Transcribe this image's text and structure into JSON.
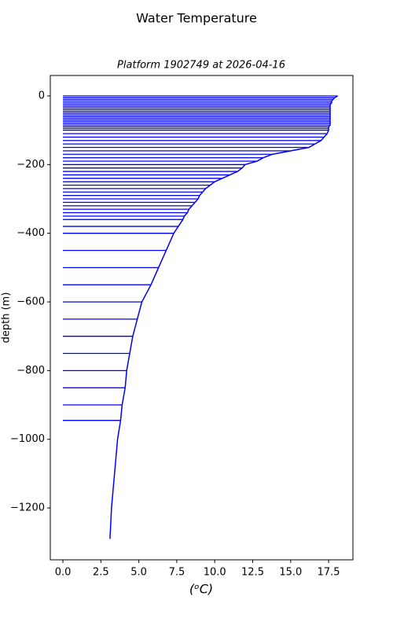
{
  "chart_data": {
    "type": "line",
    "suptitle": "Water Temperature",
    "title": "Platform 1902749 at 2026-04-16",
    "xlabel": "(ᵒC)",
    "ylabel": "depth (m)",
    "color": "#0000ff",
    "xlim": [
      -0.83,
      19.1
    ],
    "ylim": [
      -1351,
      59.5
    ],
    "xticks": [
      {
        "value": 0,
        "label": "0.0"
      },
      {
        "value": 2.5,
        "label": "2.5"
      },
      {
        "value": 5,
        "label": "5.0"
      },
      {
        "value": 7.5,
        "label": "7.5"
      },
      {
        "value": 10,
        "label": "10.0"
      },
      {
        "value": 12.5,
        "label": "12.5"
      },
      {
        "value": 15,
        "label": "15.0"
      },
      {
        "value": 17.5,
        "label": "17.5"
      }
    ],
    "yticks": [
      {
        "value": 0,
        "label": "0"
      },
      {
        "value": -200,
        "label": "−200"
      },
      {
        "value": -400,
        "label": "−400"
      },
      {
        "value": -600,
        "label": "−600"
      },
      {
        "value": -800,
        "label": "−800"
      },
      {
        "value": -1000,
        "label": "−1000"
      },
      {
        "value": -1200,
        "label": "−1200"
      }
    ],
    "profile": {
      "x": [
        18.1,
        17.9,
        17.8,
        17.7,
        17.7,
        17.6,
        17.6,
        17.6,
        17.6,
        17.6,
        17.6,
        17.6,
        17.6,
        17.6,
        17.6,
        17.6,
        17.6,
        17.6,
        17.5,
        17.5,
        17.5,
        17.4,
        17.2,
        17.0,
        16.6,
        16.2,
        15.0,
        13.8,
        13.2,
        12.8,
        12.0,
        11.8,
        11.5,
        11.0,
        10.5,
        10.0,
        9.7,
        9.4,
        9.2,
        9.0,
        8.9,
        8.7,
        8.5,
        8.3,
        8.2,
        8.0,
        7.9,
        7.6,
        7.3,
        6.8,
        6.3,
        5.8,
        5.2,
        4.9,
        4.6,
        4.4,
        4.2,
        4.1,
        3.9,
        3.8,
        3.6,
        3.4,
        3.2,
        3.1
      ],
      "y": [
        0,
        -5,
        -10,
        -15,
        -20,
        -25,
        -30,
        -35,
        -40,
        -45,
        -50,
        -55,
        -60,
        -65,
        -70,
        -75,
        -80,
        -85,
        -90,
        -95,
        -100,
        -110,
        -120,
        -130,
        -140,
        -150,
        -160,
        -170,
        -180,
        -190,
        -200,
        -210,
        -220,
        -230,
        -240,
        -250,
        -260,
        -270,
        -280,
        -290,
        -300,
        -310,
        -320,
        -330,
        -340,
        -350,
        -360,
        -380,
        -400,
        -450,
        -500,
        -550,
        -600,
        -650,
        -700,
        -750,
        -800,
        -850,
        -900,
        -945,
        -1000,
        -1100,
        -1200,
        -1290
      ]
    },
    "hlines": {
      "x": [
        18.1,
        17.9,
        17.8,
        17.7,
        17.7,
        17.6,
        17.6,
        17.6,
        17.6,
        17.6,
        17.6,
        17.6,
        17.6,
        17.6,
        17.6,
        17.6,
        17.6,
        17.6,
        17.5,
        17.5,
        17.5,
        17.4,
        17.2,
        17.0,
        16.6,
        16.2,
        15.0,
        13.8,
        13.2,
        12.8,
        12.0,
        11.8,
        11.5,
        11.0,
        10.5,
        10.0,
        9.7,
        9.4,
        9.2,
        9.0,
        8.9,
        8.7,
        8.5,
        8.3,
        8.2,
        8.0,
        7.9,
        7.6,
        7.3,
        6.8,
        6.3,
        5.8,
        5.2,
        4.9,
        4.6,
        4.4,
        4.2,
        4.1,
        3.9,
        3.8
      ],
      "y": [
        0,
        -5,
        -10,
        -15,
        -20,
        -25,
        -30,
        -35,
        -40,
        -45,
        -50,
        -55,
        -60,
        -65,
        -70,
        -75,
        -80,
        -85,
        -90,
        -95,
        -100,
        -110,
        -120,
        -130,
        -140,
        -150,
        -160,
        -170,
        -180,
        -190,
        -200,
        -210,
        -220,
        -230,
        -240,
        -250,
        -260,
        -270,
        -280,
        -290,
        -300,
        -310,
        -320,
        -330,
        -340,
        -350,
        -360,
        -380,
        -400,
        -450,
        -500,
        -550,
        -600,
        -650,
        -700,
        -750,
        -800,
        -850,
        -900,
        -945
      ]
    }
  }
}
